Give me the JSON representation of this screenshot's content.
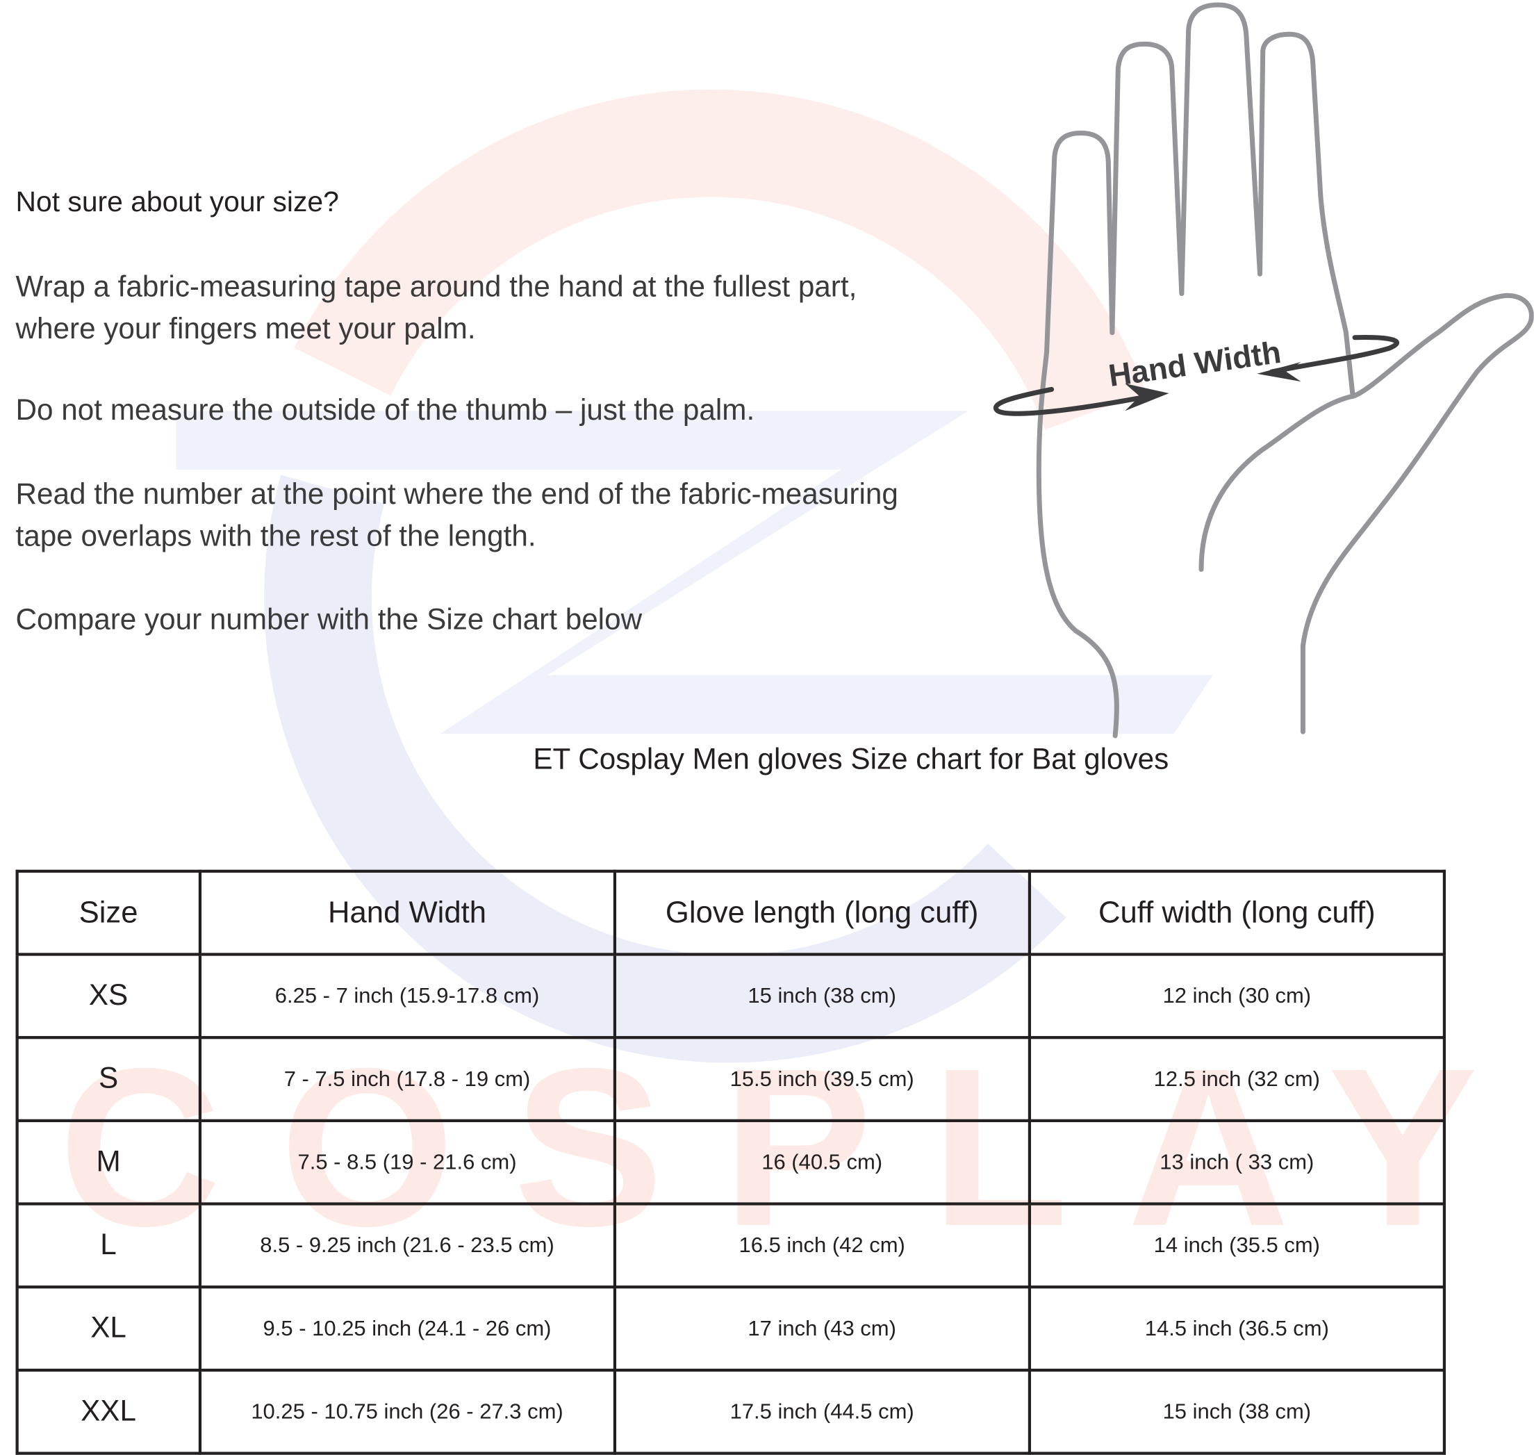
{
  "watermark": {
    "logo_text": "ET",
    "word": "COSPLAY"
  },
  "intro": {
    "question": "Not sure about your size?",
    "para1_line1": "Wrap a fabric-measuring tape around the hand at the fullest part,",
    "para1_line2": "where your fingers meet your palm.",
    "para2": "Do not measure the outside of the thumb – just the palm.",
    "para3_line1": "Read the number at the point where the end of the fabric-measuring",
    "para3_line2": "tape overlaps with the rest of the length.",
    "para4": "Compare your number with the  Size chart below"
  },
  "illustration": {
    "label": "Hand Width",
    "icon": "hand-outline-icon"
  },
  "chart_title": "ET Cosplay Men gloves Size chart for Bat gloves",
  "table": {
    "headers": [
      "Size",
      "Hand Width",
      "Glove length (long cuff)",
      "Cuff width (long cuff)"
    ],
    "rows": [
      [
        "XS",
        "6.25 - 7 inch (15.9-17.8 cm)",
        "15 inch (38 cm)",
        "12  inch (30 cm)"
      ],
      [
        "S",
        "7 - 7.5 inch (17.8 - 19 cm)",
        "15.5 inch (39.5 cm)",
        "12.5 inch (32 cm)"
      ],
      [
        "M",
        "7.5 - 8.5 (19 - 21.6 cm)",
        "16 (40.5 cm)",
        "13 inch ( 33 cm)"
      ],
      [
        "L",
        "8.5 - 9.25 inch (21.6 - 23.5 cm)",
        "16.5 inch (42 cm)",
        "14 inch (35.5 cm)"
      ],
      [
        "XL",
        "9.5 - 10.25 inch (24.1 - 26 cm)",
        "17 inch (43 cm)",
        "14.5  inch (36.5 cm)"
      ],
      [
        "XXL",
        "10.25 - 10.75 inch (26 - 27.3 cm)",
        "17.5 inch (44.5 cm)",
        "15 inch (38 cm)"
      ]
    ]
  }
}
